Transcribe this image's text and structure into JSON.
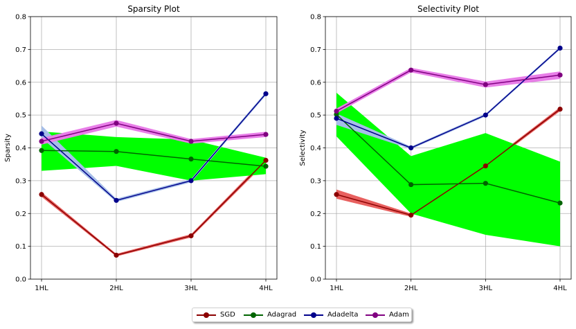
{
  "chart_data": [
    {
      "type": "line",
      "title": "Sparsity Plot",
      "xlabel": "",
      "ylabel": "Sparsity",
      "categories": [
        "1HL",
        "2HL",
        "3HL",
        "4HL"
      ],
      "ylim": [
        0,
        0.8
      ],
      "yticks": [
        "0.0",
        "0.1",
        "0.2",
        "0.3",
        "0.4",
        "0.5",
        "0.6",
        "0.7",
        "0.8"
      ],
      "grid": true,
      "series": [
        {
          "name": "SGD",
          "color": "#8b0000",
          "band_color": "#e8605f",
          "values": [
            0.258,
            0.073,
            0.132,
            0.362
          ],
          "lower": [
            0.251,
            0.069,
            0.127,
            0.355
          ],
          "upper": [
            0.265,
            0.077,
            0.137,
            0.369
          ]
        },
        {
          "name": "Adagrad",
          "color": "#006400",
          "band_color": "#00ff00",
          "values": [
            0.392,
            0.389,
            0.366,
            0.344
          ],
          "lower": [
            0.33,
            0.345,
            0.3,
            0.32
          ],
          "upper": [
            0.45,
            0.433,
            0.425,
            0.37
          ]
        },
        {
          "name": "Adadelta",
          "color": "#00008b",
          "band_color": "#a6bee8",
          "values": [
            0.443,
            0.24,
            0.3,
            0.565
          ],
          "lower": [
            0.43,
            0.235,
            0.295,
            0.56
          ],
          "upper": [
            0.468,
            0.245,
            0.305,
            0.57
          ]
        },
        {
          "name": "Adam",
          "color": "#800080",
          "band_color": "#e87ee8",
          "values": [
            0.42,
            0.475,
            0.42,
            0.441
          ],
          "lower": [
            0.41,
            0.465,
            0.413,
            0.433
          ],
          "upper": [
            0.43,
            0.485,
            0.427,
            0.449
          ]
        }
      ]
    },
    {
      "type": "line",
      "title": "Selectivity Plot",
      "xlabel": "",
      "ylabel": "Selectivity",
      "categories": [
        "1HL",
        "2HL",
        "3HL",
        "4HL"
      ],
      "ylim": [
        0,
        0.8
      ],
      "yticks": [
        "0.0",
        "0.1",
        "0.2",
        "0.3",
        "0.4",
        "0.5",
        "0.6",
        "0.7",
        "0.8"
      ],
      "grid": true,
      "series": [
        {
          "name": "SGD",
          "color": "#8b0000",
          "band_color": "#e8605f",
          "values": [
            0.258,
            0.195,
            0.345,
            0.518
          ],
          "lower": [
            0.245,
            0.19,
            0.34,
            0.512
          ],
          "upper": [
            0.273,
            0.2,
            0.35,
            0.524
          ]
        },
        {
          "name": "Adagrad",
          "color": "#006400",
          "band_color": "#00ff00",
          "values": [
            0.502,
            0.288,
            0.292,
            0.232
          ],
          "lower": [
            0.435,
            0.2,
            0.135,
            0.1
          ],
          "upper": [
            0.568,
            0.375,
            0.445,
            0.358
          ]
        },
        {
          "name": "Adadelta",
          "color": "#00008b",
          "band_color": "#a6bee8",
          "values": [
            0.49,
            0.4,
            0.5,
            0.704
          ],
          "lower": [
            0.47,
            0.396,
            0.496,
            0.7
          ],
          "upper": [
            0.505,
            0.404,
            0.504,
            0.708
          ]
        },
        {
          "name": "Adam",
          "color": "#800080",
          "band_color": "#e87ee8",
          "values": [
            0.512,
            0.637,
            0.593,
            0.622
          ],
          "lower": [
            0.505,
            0.63,
            0.584,
            0.61
          ],
          "upper": [
            0.52,
            0.644,
            0.602,
            0.633
          ]
        }
      ]
    }
  ],
  "legend": {
    "placement": "bottom-center",
    "items": [
      {
        "label": "SGD",
        "color": "#8b0000"
      },
      {
        "label": "Adagrad",
        "color": "#006400"
      },
      {
        "label": "Adadelta",
        "color": "#00008b"
      },
      {
        "label": "Adam",
        "color": "#800080"
      }
    ]
  }
}
